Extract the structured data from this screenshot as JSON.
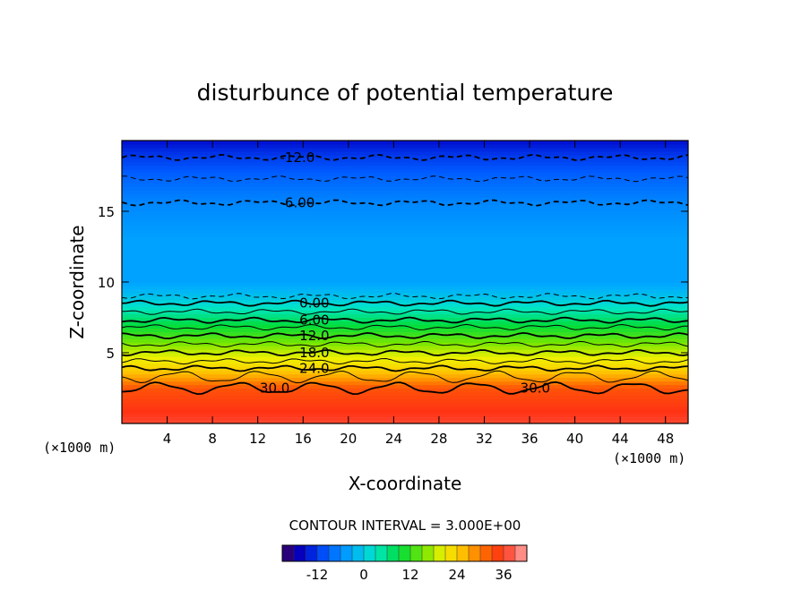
{
  "chart_data": {
    "type": "heatmap",
    "title": "disturbunce of potential temperature",
    "xlabel": "X-coordinate",
    "ylabel": "Z-coordinate",
    "x_unit_left": "(×1000 m)",
    "x_unit_right": "(×1000 m)",
    "xlim": [
      0,
      50
    ],
    "ylim": [
      0,
      20
    ],
    "x_ticks": [
      4,
      8,
      12,
      16,
      20,
      24,
      28,
      32,
      36,
      40,
      44,
      48
    ],
    "y_ticks": [
      5,
      10,
      15
    ],
    "contour_interval_label": "CONTOUR INTERVAL = 3.000E+00",
    "colorbar": {
      "min": -21,
      "max": 42,
      "ticks": [
        "-12",
        "0",
        "12",
        "24",
        "36"
      ],
      "tick_values": [
        -12,
        0,
        12,
        24,
        36
      ]
    },
    "profile": [
      {
        "z": 0,
        "value": 37
      },
      {
        "z": 2.5,
        "value": 33
      },
      {
        "z": 3.0,
        "value": 29
      },
      {
        "z": 3.5,
        "value": 26
      },
      {
        "z": 4.0,
        "value": 23
      },
      {
        "z": 5.0,
        "value": 19
      },
      {
        "z": 6.0,
        "value": 14
      },
      {
        "z": 7.0,
        "value": 9
      },
      {
        "z": 8.0,
        "value": 4
      },
      {
        "z": 9.0,
        "value": -1
      },
      {
        "z": 10.0,
        "value": -4
      },
      {
        "z": 13.0,
        "value": -4
      },
      {
        "z": 15.5,
        "value": -6
      },
      {
        "z": 17.5,
        "value": -9
      },
      {
        "z": 19.0,
        "value": -12
      },
      {
        "z": 20.0,
        "value": -15
      }
    ],
    "contours": [
      {
        "value": -12,
        "label": "-12.0",
        "z": 18.8,
        "dashed": true,
        "label_x": 15.5
      },
      {
        "value": -9,
        "label": "",
        "z": 17.3,
        "dashed": true,
        "label_x": null
      },
      {
        "value": -6,
        "label": "-6.00",
        "z": 15.6,
        "dashed": true,
        "label_x": 15.5
      },
      {
        "value": -3,
        "label": "",
        "z": 9.0,
        "dashed": true,
        "label_x": null
      },
      {
        "value": 0,
        "label": "0.00",
        "z": 8.5,
        "dashed": false,
        "label_x": 17
      },
      {
        "value": 3,
        "label": "",
        "z": 7.9,
        "dashed": false,
        "label_x": null
      },
      {
        "value": 6,
        "label": "6.00",
        "z": 7.3,
        "dashed": false,
        "label_x": 17
      },
      {
        "value": 9,
        "label": "",
        "z": 6.8,
        "dashed": false,
        "label_x": null
      },
      {
        "value": 12,
        "label": "12.0",
        "z": 6.2,
        "dashed": false,
        "label_x": 17
      },
      {
        "value": 15,
        "label": "",
        "z": 5.6,
        "dashed": false,
        "label_x": null
      },
      {
        "value": 18,
        "label": "18.0",
        "z": 5.0,
        "dashed": false,
        "label_x": 17
      },
      {
        "value": 21,
        "label": "",
        "z": 4.4,
        "dashed": false,
        "label_x": null
      },
      {
        "value": 24,
        "label": "24.0",
        "z": 3.9,
        "dashed": false,
        "label_x": 17
      },
      {
        "value": 27,
        "label": "",
        "z": 3.3,
        "dashed": false,
        "label_x": null
      },
      {
        "value": 30,
        "label": "30.0",
        "z": 2.5,
        "dashed": false,
        "label_x": [
          13.5,
          36.5
        ]
      }
    ]
  }
}
